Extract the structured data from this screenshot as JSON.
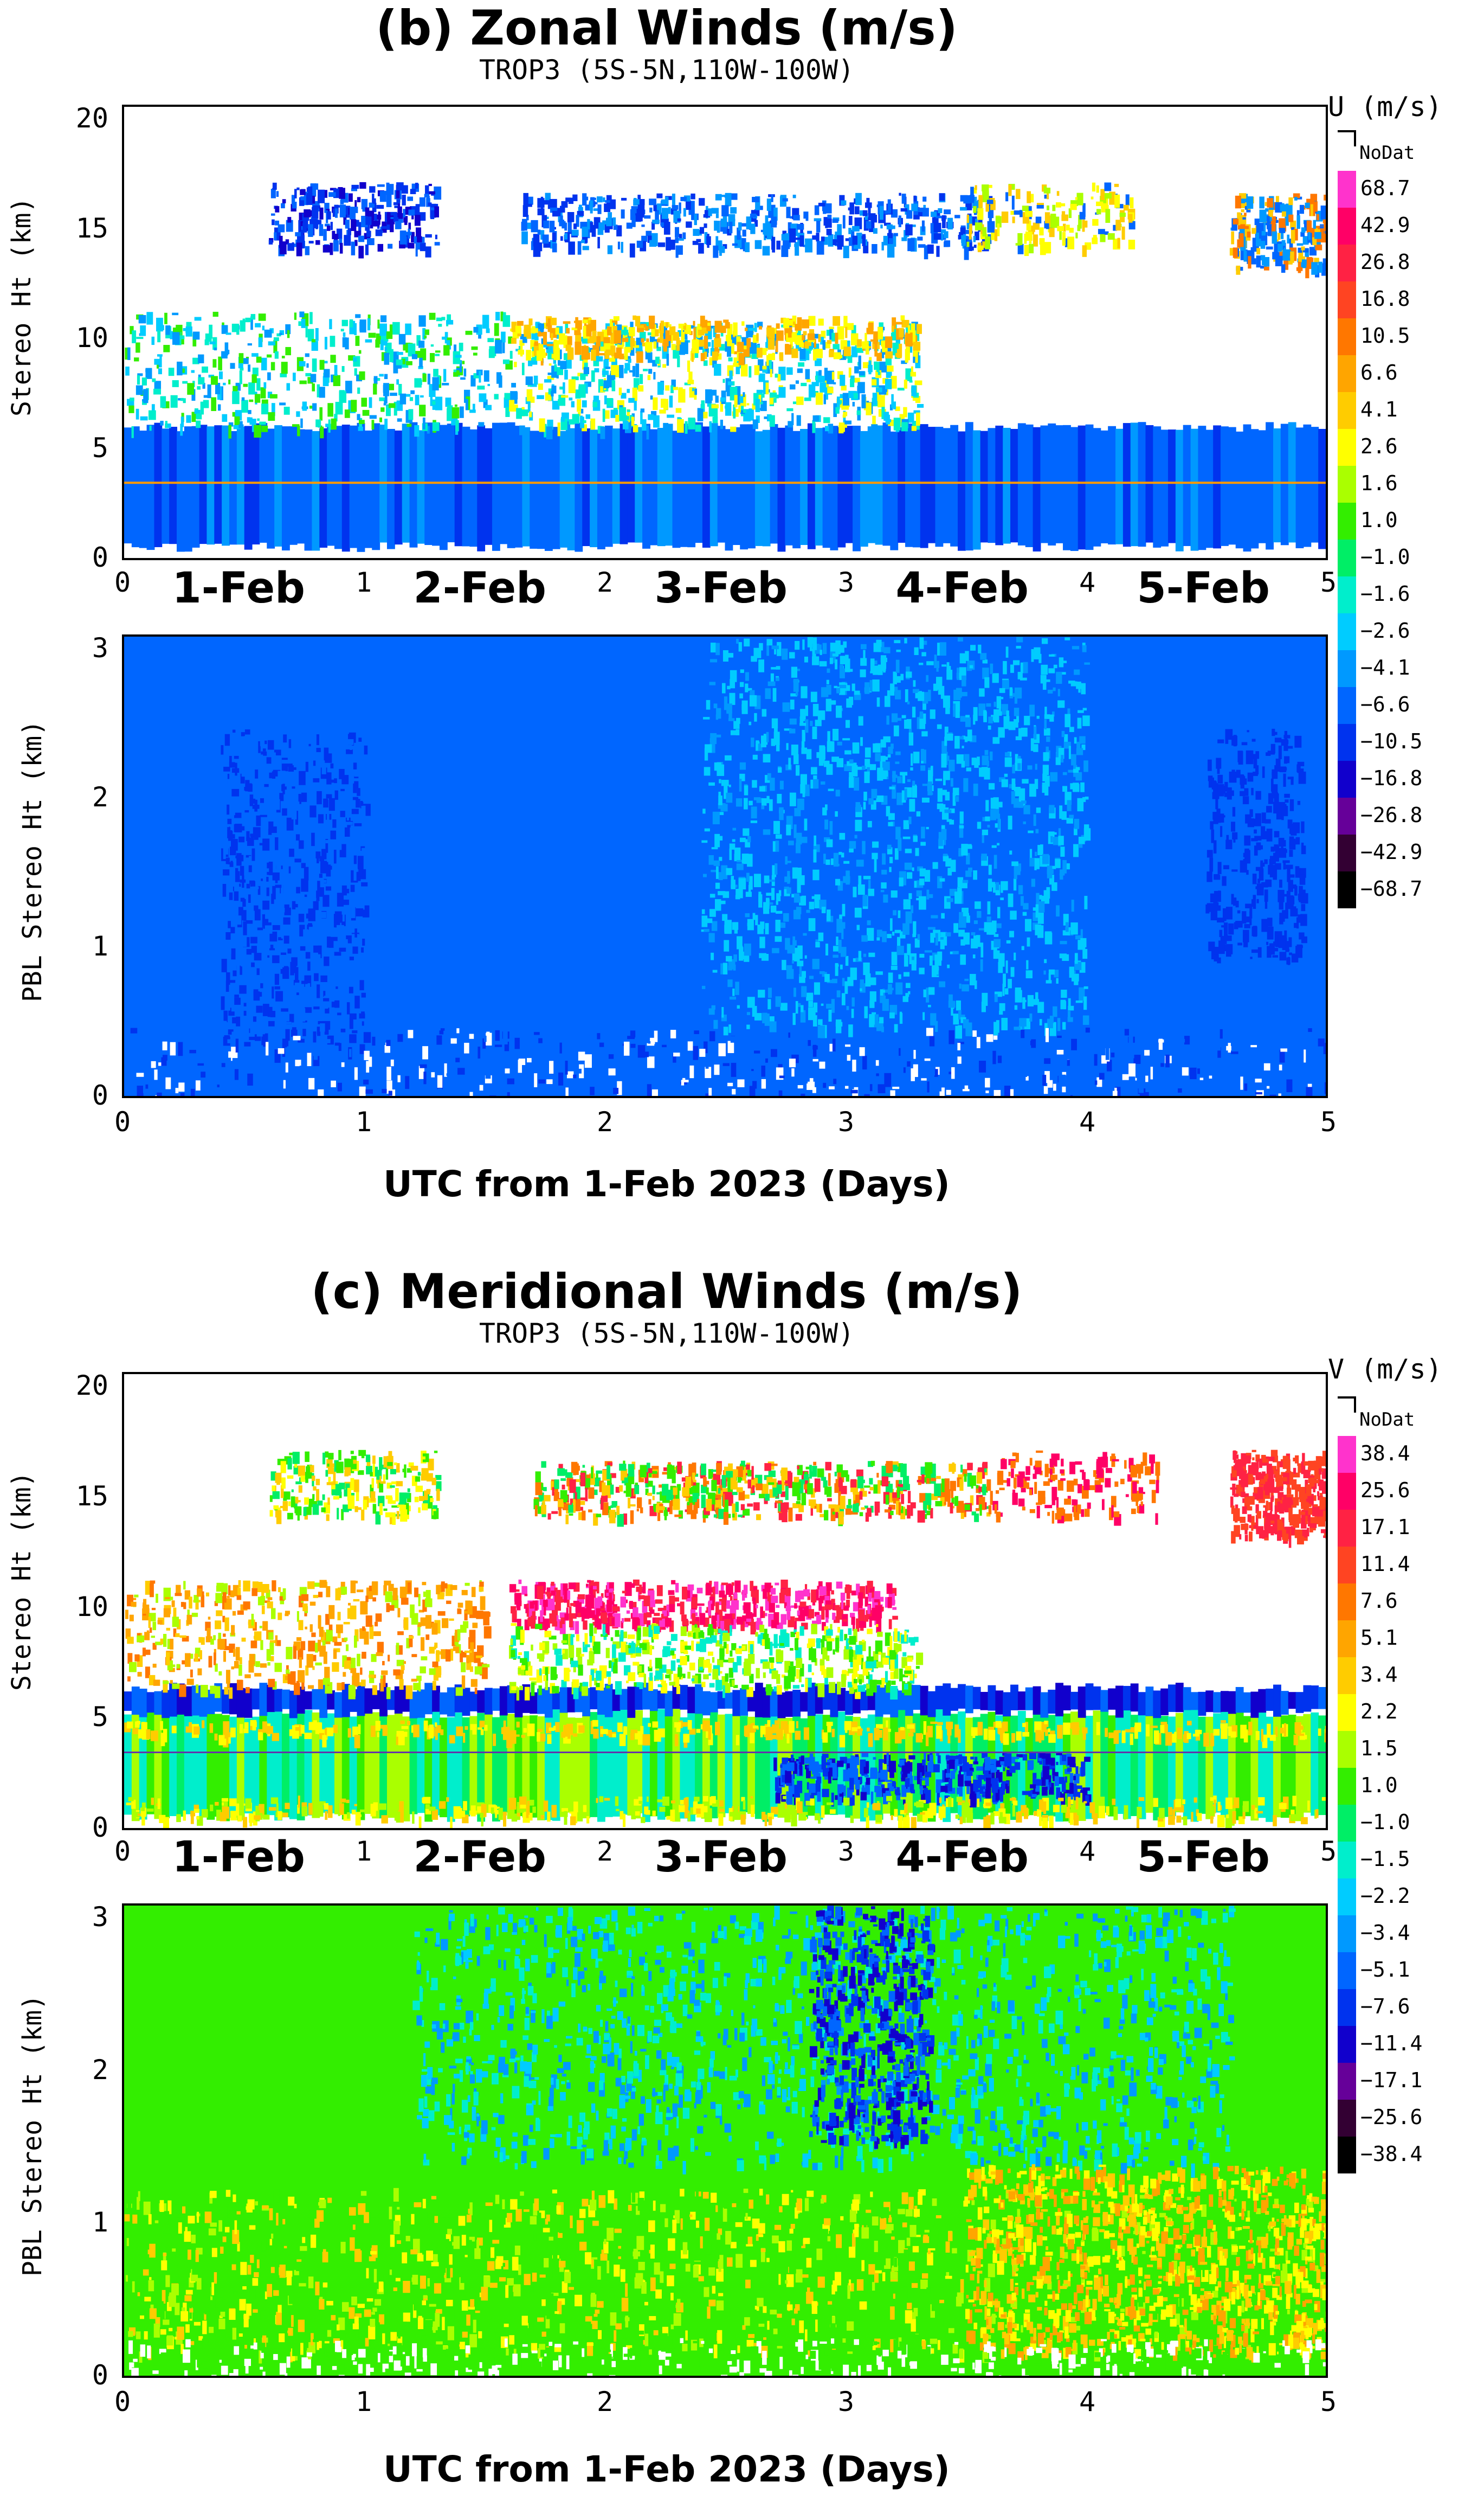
{
  "chart_data": [
    {
      "type": "heatmap",
      "title": "(b) Zonal Winds (m/s)",
      "subtitle": "TROP3 (5S-5N,110W-100W)",
      "upper_panel": {
        "ylabel": "Stereo Ht (km)",
        "ylim": [
          0,
          20
        ],
        "yticks": [
          "20",
          "15",
          "10",
          "5",
          "0"
        ],
        "reference_line_km": 3
      },
      "lower_panel": {
        "ylabel": "PBL Stereo Ht (km)",
        "ylim": [
          0,
          3
        ],
        "yticks": [
          "3",
          "2",
          "1",
          "0"
        ]
      },
      "xlim": [
        0,
        5
      ],
      "xticks": [
        "0",
        "1",
        "2",
        "3",
        "4",
        "5"
      ],
      "day_labels": [
        "1-Feb",
        "2-Feb",
        "3-Feb",
        "4-Feb",
        "5-Feb"
      ],
      "xlabel": "UTC from 1-Feb 2023 (Days)",
      "colorbar": {
        "title": "U (m/s)",
        "nodata_label": "NoDat",
        "levels": [
          "68.7",
          "42.9",
          "26.8",
          "16.8",
          "10.5",
          "6.6",
          "4.1",
          "2.6",
          "1.6",
          "1.0",
          "−1.0",
          "−1.6",
          "−2.6",
          "−4.1",
          "−6.6",
          "−10.5",
          "−16.8",
          "−26.8",
          "−42.9",
          "−68.7"
        ],
        "colors": [
          "#ff33cc",
          "#ff0066",
          "#ff2244",
          "#ff4422",
          "#ff7700",
          "#ffa500",
          "#ffcc00",
          "#ffff00",
          "#aaff00",
          "#33ee00",
          "#00ee66",
          "#00eecc",
          "#00ccff",
          "#0099ff",
          "#0066ff",
          "#0033ee",
          "#1100cc",
          "#660099",
          "#330033",
          "#000000"
        ]
      }
    },
    {
      "type": "heatmap",
      "title": "(c) Meridional Winds (m/s)",
      "subtitle": "TROP3 (5S-5N,110W-100W)",
      "upper_panel": {
        "ylabel": "Stereo Ht (km)",
        "ylim": [
          0,
          20
        ],
        "yticks": [
          "20",
          "15",
          "10",
          "5",
          "0"
        ],
        "reference_line_km": 3
      },
      "lower_panel": {
        "ylabel": "PBL Stereo Ht (km)",
        "ylim": [
          0,
          3
        ],
        "yticks": [
          "3",
          "2",
          "1",
          "0"
        ]
      },
      "xlim": [
        0,
        5
      ],
      "xticks": [
        "0",
        "1",
        "2",
        "3",
        "4",
        "5"
      ],
      "day_labels": [
        "1-Feb",
        "2-Feb",
        "3-Feb",
        "4-Feb",
        "5-Feb"
      ],
      "xlabel": "UTC from 1-Feb 2023 (Days)",
      "colorbar": {
        "title": "V (m/s)",
        "nodata_label": "NoDat",
        "levels": [
          "38.4",
          "25.6",
          "17.1",
          "11.4",
          "7.6",
          "5.1",
          "3.4",
          "2.2",
          "1.5",
          "1.0",
          "−1.0",
          "−1.5",
          "−2.2",
          "−3.4",
          "−5.1",
          "−7.6",
          "−11.4",
          "−17.1",
          "−25.6",
          "−38.4"
        ],
        "colors": [
          "#ff33cc",
          "#ff0066",
          "#ff2244",
          "#ff4422",
          "#ff7700",
          "#ffa500",
          "#ffcc00",
          "#ffff00",
          "#aaff00",
          "#33ee00",
          "#00ee66",
          "#00eecc",
          "#00ccff",
          "#0099ff",
          "#0066ff",
          "#0033ee",
          "#1100cc",
          "#660099",
          "#330033",
          "#000000"
        ]
      }
    }
  ]
}
